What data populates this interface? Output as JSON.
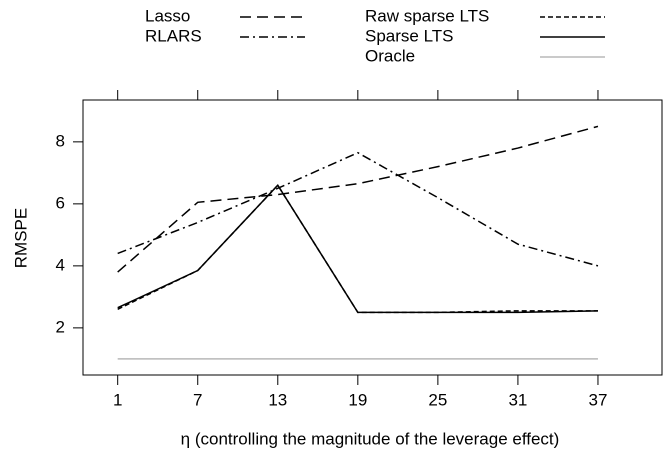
{
  "chart_data": {
    "type": "line",
    "x": [
      1,
      7,
      13,
      19,
      25,
      31,
      37
    ],
    "xlim": [
      -1.6,
      41.8
    ],
    "xticks": [
      1,
      7,
      13,
      19,
      25,
      31,
      37
    ],
    "ylim": [
      0.48,
      9.35
    ],
    "yticks": [
      2,
      4,
      6,
      8
    ],
    "xlabel": "η (controlling the magnitude of the leverage effect)",
    "ylabel": "RMSPE",
    "series": [
      {
        "name": "Lasso",
        "color": "#000000",
        "linestyle": "dashed",
        "values": [
          3.8,
          6.05,
          6.3,
          6.65,
          7.2,
          7.8,
          8.5
        ]
      },
      {
        "name": "RLARS",
        "color": "#000000",
        "linestyle": "dashdot",
        "values": [
          4.4,
          5.4,
          6.5,
          7.65,
          6.2,
          4.7,
          4.0
        ]
      },
      {
        "name": "Raw sparse LTS",
        "color": "#000000",
        "linestyle": "dotted",
        "values": [
          2.6,
          3.85,
          6.6,
          2.5,
          2.5,
          2.55,
          2.55
        ]
      },
      {
        "name": "Sparse LTS",
        "color": "#000000",
        "linestyle": "solid",
        "values": [
          2.65,
          3.85,
          6.6,
          2.5,
          2.5,
          2.5,
          2.55
        ]
      },
      {
        "name": "Oracle",
        "color": "#b8b8b8",
        "linestyle": "solid",
        "values": [
          1,
          1,
          1,
          1,
          1,
          1,
          1
        ]
      }
    ]
  }
}
